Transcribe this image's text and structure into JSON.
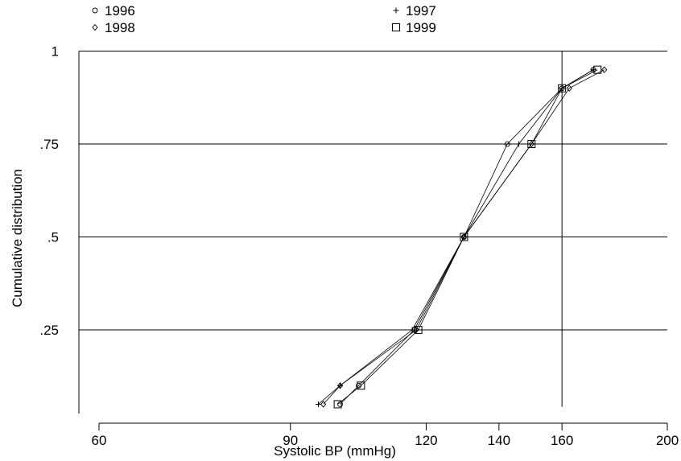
{
  "chart_data": {
    "type": "line",
    "title": "",
    "xlabel": "Systolic BP (mmHg)",
    "ylabel": "Cumulative distribution",
    "xlim": [
      60,
      200
    ],
    "ylim": [
      0.025,
      1.025
    ],
    "x_scale": "log",
    "x_ticks": [
      60,
      90,
      120,
      140,
      160,
      200
    ],
    "x_tick_labels": [
      "60",
      "90",
      "120",
      "140",
      "160",
      "200"
    ],
    "y_ticks": [
      0.25,
      0.5,
      0.75,
      1
    ],
    "y_tick_labels": [
      ".25",
      ".5",
      ".75",
      "1"
    ],
    "grid": "horizontal lines at y ticks",
    "reference_line_x": 160,
    "legend_position": "top",
    "series": [
      {
        "name": "1996",
        "marker": "circle",
        "x": [
          100,
          104,
          117,
          130,
          142.5,
          160,
          171
        ],
        "y": [
          0.05,
          0.1,
          0.25,
          0.5,
          0.75,
          0.9,
          0.95
        ]
      },
      {
        "name": "1997",
        "marker": "plus",
        "x": [
          95.5,
          100,
          116.5,
          130,
          146,
          160,
          171
        ],
        "y": [
          0.05,
          0.1,
          0.25,
          0.5,
          0.75,
          0.9,
          0.95
        ]
      },
      {
        "name": "1998",
        "marker": "diamond",
        "x": [
          96.5,
          100,
          117.5,
          130,
          150,
          162.5,
          175
        ],
        "y": [
          0.05,
          0.1,
          0.25,
          0.5,
          0.75,
          0.9,
          0.95
        ]
      },
      {
        "name": "1999",
        "marker": "square",
        "x": [
          99.5,
          104.5,
          118,
          130,
          150,
          160,
          172.5
        ],
        "y": [
          0.05,
          0.1,
          0.25,
          0.5,
          0.75,
          0.9,
          0.95
        ]
      }
    ]
  }
}
